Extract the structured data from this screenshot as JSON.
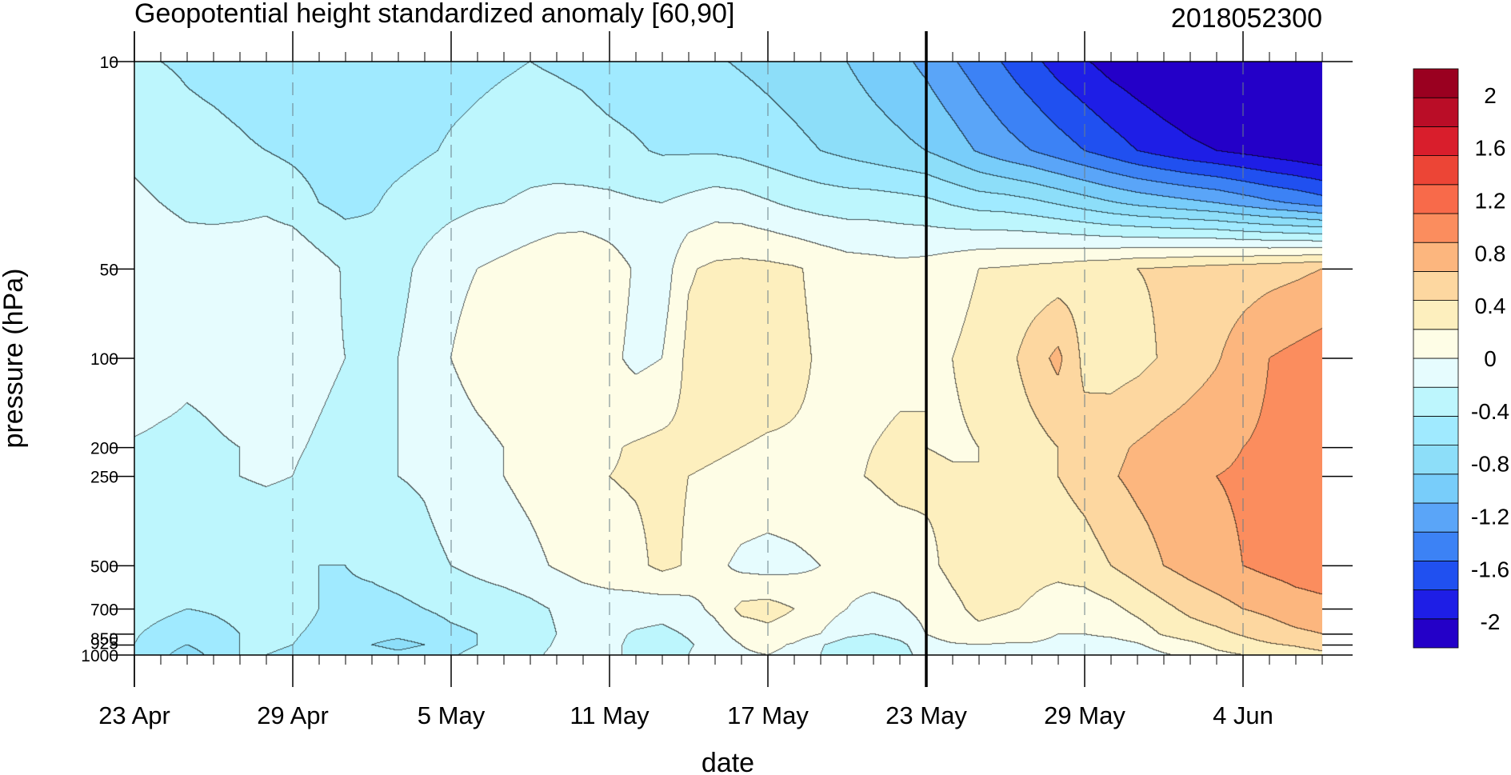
{
  "chart_data": {
    "type": "heatmap",
    "title": "Geopotential height standardized anomaly [60,90]",
    "run_label": "2018052300",
    "xlabel": "date",
    "ylabel": "pressure (hPa)",
    "x_axis": {
      "type": "date",
      "start": "2018-04-23",
      "end": "2018-06-07",
      "tick_labels": [
        "23 Apr",
        "29 Apr",
        "5 May",
        "11 May",
        "17 May",
        "23 May",
        "29 May",
        "4 Jun"
      ],
      "tick_dates": [
        "2018-04-23",
        "2018-04-29",
        "2018-05-05",
        "2018-05-11",
        "2018-05-17",
        "2018-05-23",
        "2018-05-29",
        "2018-06-04"
      ],
      "marker_date": "2018-05-23"
    },
    "y_axis": {
      "scale": "log",
      "reversed": true,
      "range": [
        1000,
        10
      ],
      "tick_labels": [
        "10",
        "50",
        "100",
        "200",
        "250",
        "500",
        "700",
        "850",
        "925",
        "1000"
      ],
      "tick_values": [
        10,
        50,
        100,
        200,
        250,
        500,
        700,
        850,
        925,
        1000
      ]
    },
    "colorbar": {
      "levels": [
        -2.2,
        -2,
        -1.8,
        -1.6,
        -1.4,
        -1.2,
        -1,
        -0.8,
        -0.6,
        -0.4,
        -0.2,
        0,
        0.2,
        0.4,
        0.6,
        0.8,
        1,
        1.2,
        1.4,
        1.6,
        1.8,
        2,
        2.2
      ],
      "tick_labels": [
        "-2",
        "-1.6",
        "-1.2",
        "-0.8",
        "-0.4",
        "0",
        "0.4",
        "0.8",
        "1.2",
        "1.6",
        "2"
      ],
      "tick_values": [
        -2,
        -1.6,
        -1.2,
        -0.8,
        -0.4,
        0,
        0.4,
        0.8,
        1.2,
        1.6,
        2
      ],
      "colors": [
        "#2400c8",
        "#1e1ee6",
        "#2050f0",
        "#3c82f5",
        "#5aa5f8",
        "#78cdfa",
        "#8ddef9",
        "#a0eaff",
        "#bdf6fd",
        "#e6fcfe",
        "#fefde6",
        "#fdefbe",
        "#fdd7a0",
        "#fcb67e",
        "#fb8d5e",
        "#f86a4a",
        "#ec4536",
        "#d91e2c",
        "#ba0d27",
        "#9a0020"
      ]
    },
    "x_days": [
      0,
      1,
      2,
      3,
      4,
      5,
      6,
      7,
      8,
      9,
      10,
      11,
      12,
      13,
      14,
      15,
      16,
      17,
      18,
      19,
      20,
      21,
      22,
      23,
      24,
      25,
      26,
      27,
      28,
      29,
      30,
      31,
      32,
      33,
      34,
      35,
      36,
      37,
      38,
      39,
      40,
      41,
      42,
      43,
      44,
      45
    ],
    "pressure_levels": [
      1000,
      925,
      850,
      700,
      500,
      250,
      200,
      100,
      50,
      30,
      20,
      10
    ],
    "values": [
      [
        -0.6,
        -0.75,
        -0.9,
        -0.75,
        -0.6,
        -0.6,
        -0.62,
        -0.62,
        -0.66,
        -0.72,
        -0.76,
        -0.72,
        -0.62,
        -0.55,
        -0.5,
        -0.45,
        -0.35,
        -0.3,
        -0.35,
        -0.45,
        -0.5,
        -0.4,
        -0.3,
        -0.22,
        -0.2,
        -0.25,
        -0.4,
        -0.55,
        -0.6,
        -0.5,
        -0.3,
        -0.24,
        -0.22,
        -0.25,
        -0.25,
        -0.3,
        -0.32,
        -0.35,
        -0.3,
        -0.22,
        -0.15,
        -0.05,
        0.0,
        0.05,
        0.1,
        0.15
      ],
      [
        -0.6,
        -0.7,
        -0.8,
        -0.7,
        -0.6,
        -0.58,
        -0.6,
        -0.66,
        -0.74,
        -0.8,
        -0.85,
        -0.8,
        -0.66,
        -0.6,
        -0.55,
        -0.48,
        -0.38,
        -0.3,
        -0.35,
        -0.45,
        -0.5,
        -0.42,
        -0.32,
        -0.2,
        -0.15,
        -0.22,
        -0.38,
        -0.5,
        -0.55,
        -0.45,
        -0.28,
        -0.22,
        -0.2,
        -0.22,
        -0.22,
        -0.25,
        -0.28,
        -0.28,
        -0.22,
        -0.12,
        -0.05,
        0.05,
        0.12,
        0.18,
        0.22,
        0.28
      ],
      [
        -0.58,
        -0.66,
        -0.72,
        -0.66,
        -0.6,
        -0.56,
        -0.58,
        -0.64,
        -0.7,
        -0.74,
        -0.76,
        -0.72,
        -0.64,
        -0.6,
        -0.56,
        -0.5,
        -0.4,
        -0.35,
        -0.35,
        -0.42,
        -0.45,
        -0.38,
        -0.28,
        -0.12,
        -0.06,
        -0.1,
        -0.2,
        -0.35,
        -0.4,
        -0.32,
        -0.2,
        -0.1,
        -0.05,
        -0.08,
        -0.12,
        -0.2,
        -0.2,
        -0.16,
        -0.1,
        0.02,
        0.1,
        0.15,
        0.22,
        0.3,
        0.36,
        0.4
      ],
      [
        -0.5,
        -0.55,
        -0.6,
        -0.58,
        -0.55,
        -0.52,
        -0.52,
        -0.6,
        -0.65,
        -0.68,
        -0.65,
        -0.6,
        -0.55,
        -0.52,
        -0.5,
        -0.45,
        -0.38,
        -0.32,
        -0.3,
        -0.3,
        -0.32,
        -0.28,
        -0.15,
        0.05,
        0.08,
        0.0,
        -0.1,
        -0.2,
        -0.25,
        -0.22,
        -0.15,
        -0.05,
        0.05,
        0.02,
        -0.02,
        -0.08,
        -0.1,
        -0.05,
        0.05,
        0.15,
        0.25,
        0.32,
        0.4,
        0.45,
        0.52,
        0.55
      ],
      [
        -0.45,
        -0.48,
        -0.5,
        -0.52,
        -0.55,
        -0.55,
        -0.55,
        -0.6,
        -0.6,
        -0.55,
        -0.5,
        -0.45,
        -0.4,
        -0.35,
        -0.3,
        -0.25,
        -0.18,
        -0.12,
        -0.08,
        -0.05,
        0.05,
        -0.02,
        -0.15,
        -0.25,
        -0.28,
        -0.25,
        -0.2,
        -0.15,
        -0.12,
        -0.1,
        -0.05,
        0.05,
        0.12,
        0.08,
        0.05,
        0.05,
        0.1,
        0.2,
        0.3,
        0.4,
        0.48,
        0.55,
        0.6,
        0.65,
        0.68,
        0.7
      ],
      [
        -0.5,
        -0.52,
        -0.5,
        -0.45,
        -0.4,
        -0.38,
        -0.4,
        -0.45,
        -0.5,
        -0.45,
        -0.4,
        -0.38,
        -0.32,
        -0.25,
        -0.2,
        -0.15,
        -0.1,
        -0.05,
        0.0,
        0.02,
        0.04,
        0.0,
        -0.02,
        -0.04,
        -0.06,
        -0.05,
        -0.04,
        -0.02,
        0.01,
        0.05,
        0.04,
        0.02,
        0.0,
        0.05,
        0.12,
        0.2,
        0.28,
        0.38,
        0.45,
        0.5,
        0.55,
        0.6,
        0.62,
        0.65,
        0.68,
        0.72
      ],
      [
        -0.42,
        -0.44,
        -0.45,
        -0.42,
        -0.4,
        -0.38,
        -0.38,
        -0.42,
        -0.46,
        -0.44,
        -0.4,
        -0.35,
        -0.3,
        -0.25,
        -0.2,
        -0.15,
        -0.12,
        -0.08,
        -0.02,
        0.02,
        0.05,
        0.04,
        0.02,
        0.0,
        -0.02,
        -0.02,
        -0.02,
        -0.02,
        0.0,
        0.02,
        0.0,
        -0.02,
        0.0,
        0.05,
        0.12,
        0.2,
        0.28,
        0.35,
        0.42,
        0.48,
        0.52,
        0.56,
        0.6,
        0.63,
        0.66,
        0.7
      ],
      [
        -0.25,
        -0.3,
        -0.35,
        -0.34,
        -0.3,
        -0.3,
        -0.32,
        -0.36,
        -0.4,
        -0.42,
        -0.4,
        -0.3,
        -0.2,
        -0.12,
        -0.08,
        -0.05,
        0.0,
        -0.1,
        -0.15,
        -0.25,
        -0.2,
        0.05,
        0.1,
        0.12,
        0.1,
        0.04,
        -0.02,
        -0.04,
        -0.04,
        -0.03,
        0.0,
        0.0,
        0.05,
        0.12,
        0.3,
        0.45,
        0.15,
        0.1,
        0.14,
        0.22,
        0.3,
        0.38,
        0.5,
        0.6,
        0.65,
        0.7
      ],
      [
        -0.2,
        -0.25,
        -0.28,
        -0.28,
        -0.25,
        -0.24,
        -0.22,
        -0.32,
        -0.42,
        -0.48,
        -0.46,
        -0.35,
        -0.25,
        -0.2,
        -0.15,
        -0.1,
        -0.04,
        -0.02,
        -0.1,
        -0.22,
        -0.32,
        -0.02,
        0.04,
        0.06,
        0.05,
        0.02,
        -0.04,
        -0.1,
        -0.12,
        -0.14,
        -0.12,
        -0.06,
        0.0,
        0.02,
        0.05,
        0.08,
        0.12,
        0.15,
        0.2,
        0.22,
        0.25,
        0.28,
        0.3,
        0.33,
        0.36,
        0.4
      ],
      [
        -0.35,
        -0.4,
        -0.45,
        -0.46,
        -0.46,
        -0.44,
        -0.5,
        -0.6,
        -0.66,
        -0.62,
        -0.55,
        -0.5,
        -0.46,
        -0.42,
        -0.4,
        -0.36,
        -0.34,
        -0.34,
        -0.35,
        -0.38,
        -0.4,
        -0.35,
        -0.3,
        -0.32,
        -0.38,
        -0.44,
        -0.48,
        -0.5,
        -0.5,
        -0.52,
        -0.55,
        -0.62,
        -0.68,
        -0.7,
        -0.75,
        -0.82,
        -0.9,
        -0.98,
        -1.05,
        -1.1,
        -1.15,
        -1.2,
        -1.28,
        -1.36,
        -1.42,
        -1.5
      ],
      [
        -0.45,
        -0.5,
        -0.55,
        -0.56,
        -0.58,
        -0.6,
        -0.64,
        -0.68,
        -0.7,
        -0.68,
        -0.66,
        -0.62,
        -0.58,
        -0.55,
        -0.52,
        -0.5,
        -0.5,
        -0.52,
        -0.55,
        -0.58,
        -0.62,
        -0.62,
        -0.62,
        -0.65,
        -0.7,
        -0.75,
        -0.8,
        -0.85,
        -0.9,
        -0.95,
        -1.0,
        -1.1,
        -1.22,
        -1.32,
        -1.4,
        -1.5,
        -1.6,
        -1.7,
        -1.8,
        -1.88,
        -1.95,
        -2.0,
        -2.05,
        -2.1,
        -2.15,
        -2.2
      ],
      [
        -0.58,
        -0.6,
        -0.62,
        -0.64,
        -0.66,
        -0.7,
        -0.72,
        -0.75,
        -0.76,
        -0.72,
        -0.7,
        -0.68,
        -0.66,
        -0.64,
        -0.62,
        -0.6,
        -0.62,
        -0.64,
        -0.68,
        -0.7,
        -0.72,
        -0.74,
        -0.78,
        -0.82,
        -0.86,
        -0.9,
        -0.95,
        -1.0,
        -1.08,
        -1.15,
        -1.25,
        -1.38,
        -1.5,
        -1.62,
        -1.75,
        -1.88,
        -1.98,
        -2.08,
        -2.15,
        -2.22,
        -2.28,
        -2.32,
        -2.36,
        -2.4,
        -2.42,
        -2.45
      ]
    ]
  }
}
